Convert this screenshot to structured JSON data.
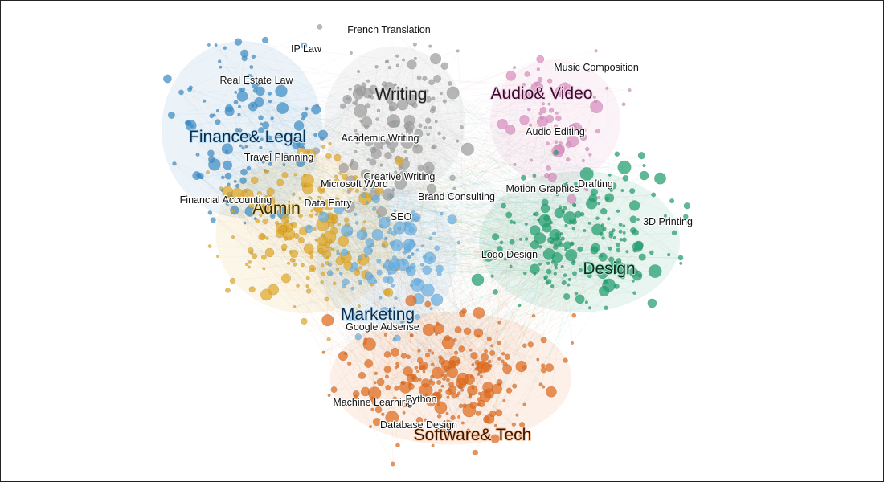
{
  "clusters": [
    {
      "name": "Writing",
      "color": "#9e9e9e",
      "label_color": "#222222",
      "outline": "#cfcfcf"
    },
    {
      "name": "Audio& Video",
      "color": "#d98cbf",
      "label_color": "#3a0a2c",
      "outline": "#f2d4e8"
    },
    {
      "name": "Finance& Legal",
      "color": "#3a8ec8",
      "label_color": "#0b2c4a",
      "outline": "#bfe0f5"
    },
    {
      "name": "Admin",
      "color": "#e0a825",
      "label_color": "#3a2a00",
      "outline": "#f5e0a0"
    },
    {
      "name": "Design",
      "color": "#1f9e6e",
      "label_color": "#0a2e20",
      "outline": "#a9e3cc"
    },
    {
      "name": "Marketing",
      "color": "#6aaee0",
      "label_color": "#0b2c4a",
      "outline": "#cde6f7"
    },
    {
      "name": "Software& Tech",
      "color": "#e06a1a",
      "label_color": "#3a1500",
      "outline": "#f7c9a8"
    }
  ],
  "skills": [
    "French Translation",
    "IP Law",
    "Real Estate Law",
    "Music Composition",
    "Academic Writing",
    "Audio Editing",
    "Travel Planning",
    "Creative Writing",
    "Microsoft Word",
    "Drafting",
    "Motion Graphics",
    "Brand Consulting",
    "Financial Accounting",
    "Data Entry",
    "3D Printing",
    "SEO",
    "Logo Design",
    "Google Adsense",
    "Machine Learning",
    "Python",
    "Database Design"
  ]
}
